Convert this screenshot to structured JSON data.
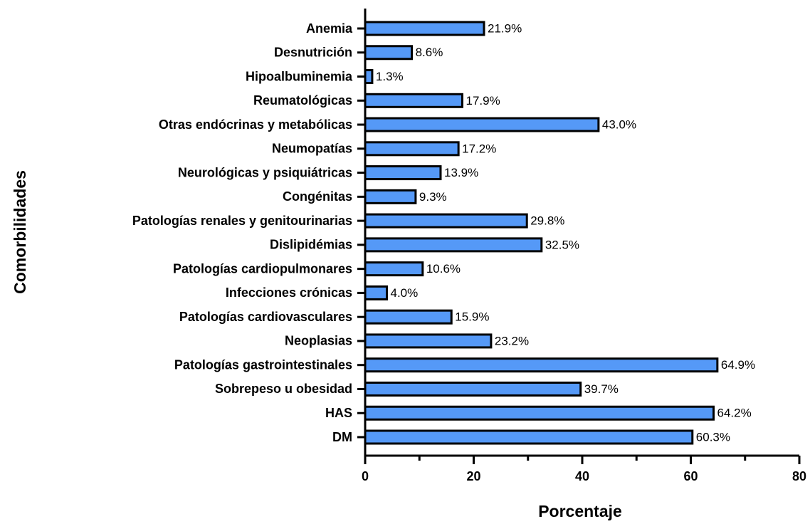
{
  "chart_data": {
    "type": "bar",
    "orientation": "horizontal",
    "xlabel": "Porcentaje",
    "ylabel": "Comorbilidades",
    "categories": [
      "Anemia",
      "Desnutrición",
      "Hipoalbuminemia",
      "Reumatológicas",
      "Otras endócrinas y metabólicas",
      "Neumopatías",
      "Neurológicas y psiquiátricas",
      "Congénitas",
      "Patologías renales y genitourinarias",
      "Dislipidémias",
      "Patologías cardiopulmonares",
      "Infecciones crónicas",
      "Patologías cardiovasculares",
      "Neoplasias",
      "Patologías gastrointestinales",
      "Sobrepeso u obesidad",
      "HAS",
      "DM"
    ],
    "values": [
      21.9,
      8.6,
      1.3,
      17.9,
      43.0,
      17.2,
      13.9,
      9.3,
      29.8,
      32.5,
      10.6,
      4.0,
      15.9,
      23.2,
      64.9,
      39.7,
      64.2,
      60.3
    ],
    "value_labels": [
      "21.9%",
      "8.6%",
      "1.3%",
      "17.9%",
      "43.0%",
      "17.2%",
      "13.9%",
      "9.3%",
      "29.8%",
      "32.5%",
      "10.6%",
      "4.0%",
      "15.9%",
      "23.2%",
      "64.9%",
      "39.7%",
      "64.2%",
      "60.3%"
    ],
    "color": "#5599f7",
    "edgecolor": "#000000",
    "xlim": [
      0,
      80
    ],
    "xticks": [
      0,
      20,
      40,
      60,
      80
    ],
    "xminorticks": [
      10,
      30,
      50,
      70
    ],
    "grid": false
  }
}
